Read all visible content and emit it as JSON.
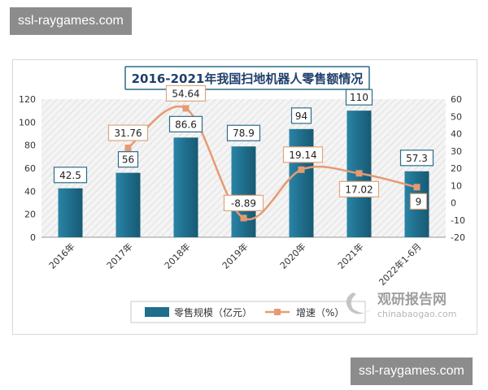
{
  "watermarks": {
    "top": "ssl-raygames.com",
    "bottom": "ssl-raygames.com"
  },
  "brand": {
    "name": "观研报告网",
    "url": "chinabaogao.com"
  },
  "chart_data": {
    "type": "bar+line",
    "title": "2016-2021年我国扫地机器人零售额情况",
    "categories": [
      "2016年",
      "2017年",
      "2018年",
      "2019年",
      "2020年",
      "2021年",
      "2022年1-6月"
    ],
    "series": [
      {
        "name": "零售规模（亿元）",
        "type": "bar",
        "axis": "left",
        "color": "#1f6e8c",
        "values": [
          42.5,
          56,
          86.6,
          78.9,
          94,
          110,
          57.3
        ],
        "labels": [
          "42.5",
          "56",
          "86.6",
          "78.9",
          "94",
          "110",
          "57.3"
        ]
      },
      {
        "name": "增速（%）",
        "type": "line",
        "axis": "right",
        "color": "#e79a72",
        "values": [
          null,
          31.76,
          54.64,
          -8.89,
          19.14,
          17.02,
          9
        ],
        "labels": [
          "",
          "31.76",
          "54.64",
          "-8.89",
          "19.14",
          "17.02",
          "9"
        ]
      }
    ],
    "y_left": {
      "min": 0,
      "max": 120,
      "step": 20,
      "ticks": [
        "0",
        "20",
        "40",
        "60",
        "80",
        "100",
        "120"
      ]
    },
    "y_right": {
      "min": -20,
      "max": 60,
      "step": 10,
      "ticks": [
        "-20",
        "-10",
        "0",
        "10",
        "20",
        "30",
        "40",
        "50",
        "60"
      ]
    },
    "legend": "bottom",
    "grid": false
  }
}
